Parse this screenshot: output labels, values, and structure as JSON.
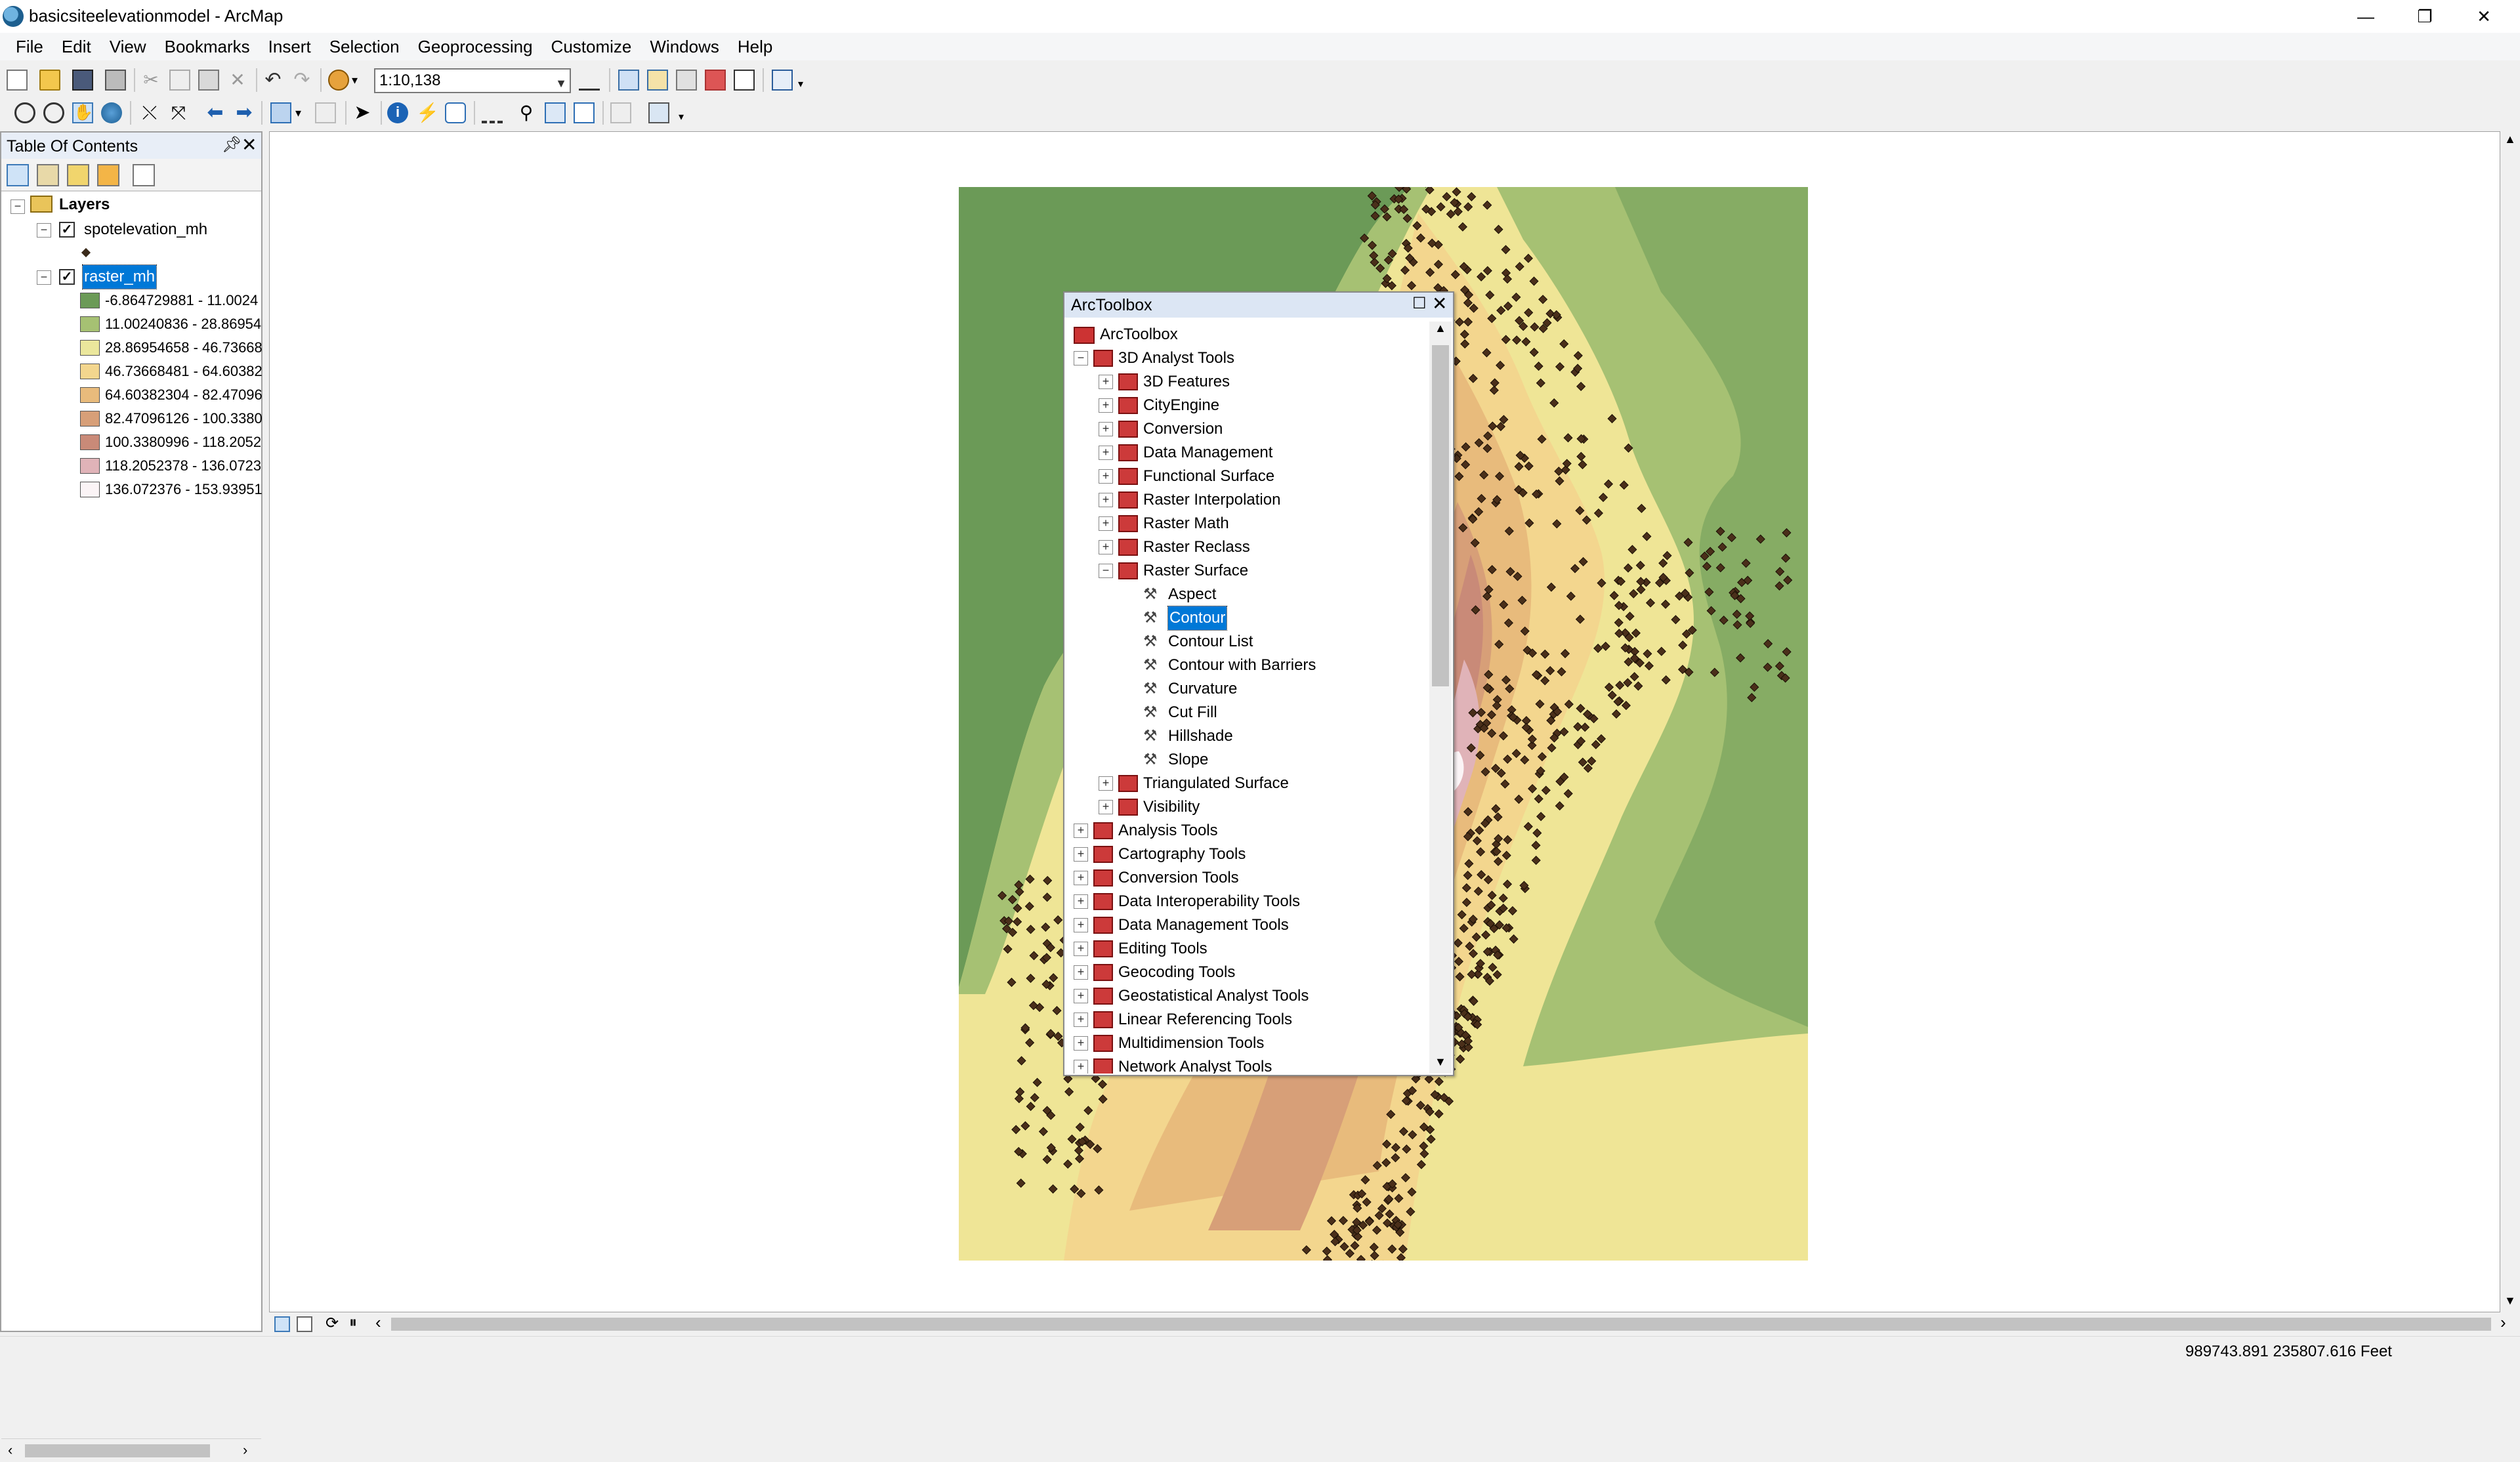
{
  "window": {
    "title": "basicsiteelevationmodel - ArcMap",
    "minimize_icon": "minimize-icon",
    "maximize_icon": "restore-icon",
    "close_icon": "close-icon"
  },
  "menu": [
    "File",
    "Edit",
    "View",
    "Bookmarks",
    "Insert",
    "Selection",
    "Geoprocessing",
    "Customize",
    "Windows",
    "Help"
  ],
  "toolbar": {
    "scale": "1:10,138"
  },
  "toc": {
    "title": "Table Of Contents",
    "root": "Layers",
    "layers": [
      {
        "name": "spotelevation_mh",
        "checked": true
      },
      {
        "name": "raster_mh",
        "checked": true,
        "selected": true
      }
    ],
    "legend": [
      {
        "label": "-6.864729881 - 11.0024",
        "color": "#6b9a57"
      },
      {
        "label": "11.00240836 - 28.86954",
        "color": "#a6c173"
      },
      {
        "label": "28.86954658 - 46.73668",
        "color": "#ebe79c"
      },
      {
        "label": "46.73668481 - 64.60382",
        "color": "#f3d68e"
      },
      {
        "label": "64.60382304 - 82.47096",
        "color": "#e8bb7c"
      },
      {
        "label": "82.47096126 - 100.3380",
        "color": "#d79f78"
      },
      {
        "label": "100.3380996 - 118.2052",
        "color": "#c98a78"
      },
      {
        "label": "118.2052378 - 136.0723",
        "color": "#e0b3b8"
      },
      {
        "label": "136.072376 - 153.93951",
        "color": "#fbf4f6"
      }
    ]
  },
  "arctoolbox": {
    "title": "ArcToolbox",
    "root": "ArcToolbox",
    "items": [
      {
        "label": "3D Analyst Tools",
        "level": 1,
        "type": "toolbox",
        "expanded": true
      },
      {
        "label": "3D Features",
        "level": 2,
        "type": "toolset"
      },
      {
        "label": "CityEngine",
        "level": 2,
        "type": "toolset"
      },
      {
        "label": "Conversion",
        "level": 2,
        "type": "toolset"
      },
      {
        "label": "Data Management",
        "level": 2,
        "type": "toolset"
      },
      {
        "label": "Functional Surface",
        "level": 2,
        "type": "toolset"
      },
      {
        "label": "Raster Interpolation",
        "level": 2,
        "type": "toolset"
      },
      {
        "label": "Raster Math",
        "level": 2,
        "type": "toolset"
      },
      {
        "label": "Raster Reclass",
        "level": 2,
        "type": "toolset"
      },
      {
        "label": "Raster Surface",
        "level": 2,
        "type": "toolset",
        "expanded": true
      },
      {
        "label": "Aspect",
        "level": 3,
        "type": "tool"
      },
      {
        "label": "Contour",
        "level": 3,
        "type": "tool",
        "selected": true
      },
      {
        "label": "Contour List",
        "level": 3,
        "type": "tool"
      },
      {
        "label": "Contour with Barriers",
        "level": 3,
        "type": "tool"
      },
      {
        "label": "Curvature",
        "level": 3,
        "type": "tool"
      },
      {
        "label": "Cut Fill",
        "level": 3,
        "type": "tool"
      },
      {
        "label": "Hillshade",
        "level": 3,
        "type": "tool"
      },
      {
        "label": "Slope",
        "level": 3,
        "type": "tool"
      },
      {
        "label": "Triangulated Surface",
        "level": 2,
        "type": "toolset"
      },
      {
        "label": "Visibility",
        "level": 2,
        "type": "toolset"
      },
      {
        "label": "Analysis Tools",
        "level": 1,
        "type": "toolbox"
      },
      {
        "label": "Cartography Tools",
        "level": 1,
        "type": "toolbox"
      },
      {
        "label": "Conversion Tools",
        "level": 1,
        "type": "toolbox"
      },
      {
        "label": "Data Interoperability Tools",
        "level": 1,
        "type": "toolbox"
      },
      {
        "label": "Data Management Tools",
        "level": 1,
        "type": "toolbox"
      },
      {
        "label": "Editing Tools",
        "level": 1,
        "type": "toolbox"
      },
      {
        "label": "Geocoding Tools",
        "level": 1,
        "type": "toolbox"
      },
      {
        "label": "Geostatistical Analyst Tools",
        "level": 1,
        "type": "toolbox"
      },
      {
        "label": "Linear Referencing Tools",
        "level": 1,
        "type": "toolbox"
      },
      {
        "label": "Multidimension Tools",
        "level": 1,
        "type": "toolbox"
      },
      {
        "label": "Network Analyst Tools",
        "level": 1,
        "type": "toolbox"
      }
    ]
  },
  "status": {
    "coordinates": "989743.891  235807.616 Feet"
  }
}
